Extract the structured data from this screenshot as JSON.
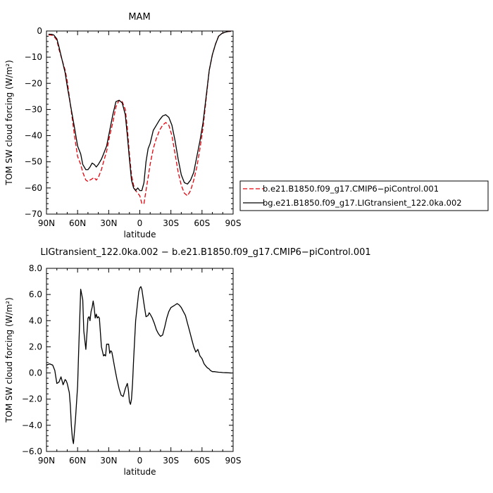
{
  "chart_data": [
    {
      "type": "line",
      "title": "MAM",
      "xlabel": "latitude",
      "ylabel": "TOM SW cloud forcing (W/m²)",
      "xlim": [
        90,
        -90
      ],
      "ylim": [
        -70,
        0
      ],
      "xticks": [
        {
          "value": 90,
          "label": "90N"
        },
        {
          "value": 60,
          "label": "60N"
        },
        {
          "value": 30,
          "label": "30N"
        },
        {
          "value": 0,
          "label": "0"
        },
        {
          "value": -30,
          "label": "30S"
        },
        {
          "value": -60,
          "label": "60S"
        },
        {
          "value": -90,
          "label": "90S"
        }
      ],
      "yticks": [
        {
          "value": 0,
          "label": "0"
        },
        {
          "value": -10,
          "label": "−10"
        },
        {
          "value": -20,
          "label": "−20"
        },
        {
          "value": -30,
          "label": "−30"
        },
        {
          "value": -40,
          "label": "−40"
        },
        {
          "value": -50,
          "label": "−50"
        },
        {
          "value": -60,
          "label": "−60"
        },
        {
          "value": -70,
          "label": "−70"
        }
      ],
      "legend": "right",
      "series": [
        {
          "name": "b.e21.B1850.f09_g17.CMIP6−piControl.001",
          "color": "#e8000b",
          "style": "dashed",
          "x": [
            88,
            85,
            83,
            80,
            78,
            75,
            72,
            70,
            67,
            63,
            60,
            57,
            55,
            52,
            50,
            48,
            46,
            44,
            42,
            40,
            37,
            35,
            32,
            29,
            26,
            23,
            20,
            17,
            14,
            12,
            10,
            8,
            6,
            4,
            2,
            0,
            -2,
            -4,
            -6,
            -8,
            -10,
            -13,
            -16,
            -19,
            -22,
            -25,
            -28,
            -31,
            -34,
            -37,
            -40,
            -43,
            -46,
            -49,
            -52,
            -55,
            -58,
            -61,
            -64,
            -67,
            -70,
            -73,
            -76,
            -79,
            -82,
            -85,
            -88
          ],
          "y": [
            -1.5,
            -1.6,
            -2,
            -3.5,
            -7,
            -11,
            -15,
            -19,
            -28,
            -40,
            -48,
            -51,
            -54,
            -57,
            -57.5,
            -57,
            -56.5,
            -56,
            -57,
            -56,
            -53,
            -50,
            -46,
            -40,
            -35,
            -29,
            -26.5,
            -27,
            -30,
            -37,
            -47,
            -55,
            -59,
            -61,
            -62,
            -63,
            -66,
            -66,
            -61,
            -56,
            -51,
            -45,
            -41,
            -38,
            -36,
            -35,
            -36,
            -40,
            -47,
            -54,
            -59,
            -62,
            -63,
            -61,
            -57,
            -52,
            -45,
            -37,
            -26,
            -15,
            -9,
            -5,
            -2,
            -1,
            -0.5,
            -0.2,
            -0.1
          ]
        },
        {
          "name": "bg.e21.B1850.f09_g17.LIGtransient_122.0ka.002",
          "color": "#000000",
          "style": "solid",
          "x": [
            88,
            85,
            83,
            80,
            78,
            75,
            72,
            70,
            67,
            63,
            60,
            57,
            55,
            52,
            50,
            48,
            46,
            44,
            42,
            40,
            37,
            35,
            32,
            29,
            26,
            23,
            20,
            17,
            14,
            12,
            10,
            8,
            6,
            4,
            2,
            0,
            -2,
            -4,
            -6,
            -8,
            -10,
            -13,
            -16,
            -19,
            -22,
            -25,
            -28,
            -31,
            -34,
            -37,
            -40,
            -43,
            -46,
            -49,
            -52,
            -55,
            -58,
            -61,
            -64,
            -67,
            -70,
            -73,
            -76,
            -79,
            -82,
            -85,
            -88
          ],
          "y": [
            -1.2,
            -1.3,
            -1.5,
            -3,
            -6,
            -11,
            -16,
            -21,
            -28,
            -37,
            -44,
            -47,
            -51,
            -53,
            -53,
            -52,
            -50.5,
            -51,
            -52,
            -51,
            -49,
            -47,
            -44,
            -38,
            -32,
            -27,
            -26.5,
            -27.5,
            -32,
            -40,
            -49,
            -57,
            -60,
            -61,
            -60,
            -61,
            -61,
            -58,
            -50,
            -45,
            -43,
            -38,
            -36,
            -34,
            -32.5,
            -32,
            -33,
            -36,
            -42,
            -49,
            -55,
            -58,
            -58.5,
            -57,
            -54,
            -48,
            -42,
            -35,
            -25,
            -15,
            -9,
            -5,
            -2,
            -1,
            -0.5,
            -0.2,
            -0.1
          ]
        }
      ]
    },
    {
      "type": "line",
      "title": "LIGtransient_122.0ka.002 − b.e21.B1850.f09_g17.CMIP6−piControl.001",
      "xlabel": "latitude",
      "ylabel": "TOM SW cloud forcing (W/m²)",
      "xlim": [
        90,
        -90
      ],
      "ylim": [
        -6,
        8
      ],
      "xticks": [
        {
          "value": 90,
          "label": "90N"
        },
        {
          "value": 60,
          "label": "60N"
        },
        {
          "value": 30,
          "label": "30N"
        },
        {
          "value": 0,
          "label": "0"
        },
        {
          "value": -30,
          "label": "30S"
        },
        {
          "value": -60,
          "label": "60S"
        },
        {
          "value": -90,
          "label": "90S"
        }
      ],
      "yticks": [
        {
          "value": 8,
          "label": "8.0"
        },
        {
          "value": 6,
          "label": "6.0"
        },
        {
          "value": 4,
          "label": "4.0"
        },
        {
          "value": 2,
          "label": "2.0"
        },
        {
          "value": 0,
          "label": "0.0"
        },
        {
          "value": -2,
          "label": "−2.0"
        },
        {
          "value": -4,
          "label": "−4.0"
        },
        {
          "value": -6,
          "label": "−6.0"
        }
      ],
      "series": [
        {
          "name": "",
          "color": "#000000",
          "style": "solid",
          "x": [
            90,
            87,
            84,
            82,
            80,
            78,
            76,
            74,
            72,
            71,
            70,
            68,
            67,
            66,
            65,
            64,
            62,
            60,
            59,
            57,
            55,
            54,
            52,
            50,
            49,
            48,
            47,
            46,
            45,
            44,
            43,
            42,
            41,
            40,
            39,
            37,
            35,
            34,
            33,
            32,
            30,
            29,
            28,
            27,
            26,
            24,
            22,
            20,
            18,
            16,
            14,
            12,
            11,
            10,
            9,
            8,
            7,
            6,
            4,
            2,
            1,
            0,
            -1,
            -2,
            -4,
            -6,
            -8,
            -9,
            -10,
            -12,
            -14,
            -16,
            -18,
            -20,
            -22,
            -24,
            -26,
            -28,
            -30,
            -32,
            -34,
            -36,
            -38,
            -40,
            -42,
            -44,
            -46,
            -48,
            -50,
            -52,
            -54,
            -56,
            -58,
            -60,
            -62,
            -64,
            -65,
            -66,
            -67,
            -68,
            -70,
            -72,
            -74,
            -76,
            -78,
            -80,
            -83,
            -86,
            -89
          ],
          "y": [
            0.6,
            0.7,
            0.6,
            0.2,
            -0.8,
            -0.7,
            -0.3,
            -0.9,
            -0.5,
            -0.6,
            -0.8,
            -1.5,
            -2.5,
            -4.0,
            -5.0,
            -5.4,
            -3.5,
            -1.0,
            1.5,
            6.4,
            5.6,
            3.2,
            1.8,
            4.2,
            4.3,
            4.0,
            4.7,
            5.0,
            5.5,
            5.0,
            4.2,
            4.5,
            4.2,
            4.3,
            4.2,
            2.0,
            1.3,
            1.4,
            1.3,
            2.2,
            2.2,
            1.5,
            1.7,
            1.6,
            1.2,
            0.3,
            -0.5,
            -1.2,
            -1.7,
            -1.8,
            -1.2,
            -0.8,
            -1.3,
            -2.2,
            -2.4,
            -2.0,
            -0.8,
            1.0,
            4.0,
            5.5,
            6.2,
            6.5,
            6.6,
            6.4,
            5.3,
            4.3,
            4.4,
            4.6,
            4.5,
            4.2,
            3.8,
            3.3,
            3.0,
            2.8,
            2.9,
            3.5,
            4.2,
            4.7,
            5.0,
            5.1,
            5.2,
            5.3,
            5.2,
            5.0,
            4.7,
            4.4,
            3.8,
            3.2,
            2.6,
            2.0,
            1.6,
            1.8,
            1.3,
            1.1,
            0.7,
            0.5,
            0.4,
            0.35,
            0.3,
            0.2,
            0.1,
            0.1,
            0.08,
            0.06,
            0.05,
            0.03,
            0.02,
            0.01,
            0.0
          ]
        }
      ]
    }
  ]
}
